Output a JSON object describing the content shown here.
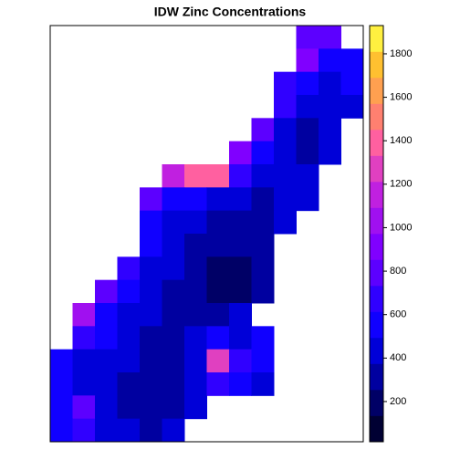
{
  "chart_data": {
    "type": "raster",
    "title": "IDW Zinc Concentrations",
    "zlim": [
      15,
      1930
    ],
    "zticks": [
      200,
      400,
      600,
      800,
      1000,
      1200,
      1400,
      1600,
      1800
    ],
    "colors": [
      "#000033",
      "#000066",
      "#0000A0",
      "#0000D8",
      "#1000FF",
      "#3000FF",
      "#5C00FF",
      "#8000FF",
      "#A010F0",
      "#C020E0",
      "#E040C0",
      "#FF60A0",
      "#FF8070",
      "#FFA050",
      "#FFC030",
      "#FFF040"
    ],
    "grid": [
      [
        null,
        null,
        null,
        null,
        null,
        null,
        null,
        null,
        null,
        null,
        null,
        750,
        850,
        null
      ],
      [
        null,
        null,
        null,
        null,
        null,
        null,
        null,
        null,
        null,
        null,
        null,
        900,
        600,
        520
      ],
      [
        null,
        null,
        null,
        null,
        null,
        null,
        null,
        null,
        null,
        null,
        700,
        520,
        480,
        560
      ],
      [
        null,
        null,
        null,
        null,
        null,
        null,
        null,
        null,
        null,
        null,
        650,
        450,
        380,
        470
      ],
      [
        null,
        null,
        null,
        null,
        null,
        null,
        null,
        null,
        null,
        800,
        480,
        350,
        420,
        null
      ],
      [
        null,
        null,
        null,
        null,
        null,
        null,
        null,
        null,
        950,
        600,
        420,
        330,
        430,
        null
      ],
      [
        null,
        null,
        null,
        null,
        null,
        1200,
        1350,
        1450,
        700,
        450,
        380,
        400,
        null,
        null
      ],
      [
        null,
        null,
        null,
        null,
        850,
        600,
        520,
        450,
        400,
        350,
        420,
        480,
        null,
        null
      ],
      [
        null,
        null,
        null,
        null,
        600,
        450,
        380,
        320,
        300,
        360,
        450,
        null,
        null,
        null
      ],
      [
        null,
        null,
        null,
        null,
        520,
        400,
        330,
        280,
        260,
        340,
        null,
        null,
        null,
        null
      ],
      [
        null,
        null,
        null,
        700,
        480,
        380,
        300,
        240,
        220,
        300,
        null,
        null,
        null,
        null
      ],
      [
        null,
        null,
        750,
        520,
        430,
        350,
        280,
        230,
        250,
        330,
        null,
        null,
        null,
        null
      ],
      [
        null,
        1000,
        600,
        480,
        400,
        330,
        270,
        320,
        380,
        null,
        null,
        null,
        null,
        null
      ],
      [
        null,
        700,
        520,
        430,
        370,
        320,
        400,
        600,
        480,
        500,
        null,
        null,
        null,
        null
      ],
      [
        550,
        480,
        420,
        380,
        330,
        360,
        450,
        1300,
        650,
        550,
        null,
        null,
        null,
        null
      ],
      [
        500,
        430,
        380,
        320,
        280,
        300,
        380,
        700,
        520,
        480,
        null,
        null,
        null,
        null
      ],
      [
        600,
        850,
        480,
        350,
        300,
        320,
        420,
        null,
        null,
        null,
        null,
        null,
        null,
        null
      ],
      [
        520,
        650,
        430,
        380,
        360,
        400,
        null,
        null,
        null,
        null,
        null,
        null,
        null,
        null
      ]
    ]
  }
}
